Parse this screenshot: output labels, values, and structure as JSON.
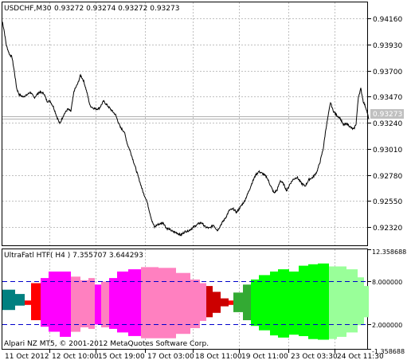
{
  "main_chart": {
    "symbol_info": "USDCHF,M30",
    "ohlc": "0.93272 0.93274 0.93272 0.93273",
    "current_price_label": "0.93273",
    "price_ticks": [
      "0.94160",
      "0.93930",
      "0.93700",
      "0.93470",
      "0.93240",
      "0.93010",
      "0.92780",
      "0.92550",
      "0.92320"
    ],
    "price_tick_values": [
      0.9416,
      0.9393,
      0.937,
      0.9347,
      0.9324,
      0.9301,
      0.9278,
      0.9255,
      0.9232
    ],
    "price_line_values": [
      0.93273,
      0.933
    ]
  },
  "indicator": {
    "title": "UltraFatl HTF( H4 ) 7.355707 3.644293",
    "scale_labels": [
      "12.358688",
      "8.000000",
      "2.000000",
      "-1.358688"
    ],
    "scale_values": [
      12.358688,
      8.0,
      2.0,
      -1.358688
    ],
    "level_values": [
      8.0,
      2.0
    ],
    "footer": "Alpari NZ MT5, © 2001-2012 MetaQuotes Software Corp."
  },
  "time_axis": {
    "labels": [
      "11 Oct 2012",
      "12 Oct 10:00",
      "15 Oct 19:00",
      "17 Oct 03:00",
      "18 Oct 11:00",
      "19 Oct 11:00",
      "23 Oct 03:30",
      "24 Oct 11:30"
    ]
  },
  "chart_data": [
    {
      "type": "line",
      "title": "USDCHF,M30",
      "x": [
        "11 Oct 2012",
        "12 Oct 10:00",
        "15 Oct 19:00",
        "17 Oct 03:00",
        "18 Oct 11:00",
        "19 Oct 11:00",
        "23 Oct 03:30",
        "24 Oct 11:30"
      ],
      "series": [
        {
          "name": "USDCHF,M30",
          "points": [
            [
              0,
              0.9413
            ],
            [
              2,
              0.9406
            ],
            [
              5,
              0.9392
            ],
            [
              9,
              0.9384
            ],
            [
              12,
              0.9382
            ],
            [
              15,
              0.9369
            ],
            [
              18,
              0.9354
            ],
            [
              21,
              0.9349
            ],
            [
              25,
              0.9347
            ],
            [
              30,
              0.9348
            ],
            [
              35,
              0.9351
            ],
            [
              40,
              0.9346
            ],
            [
              46,
              0.9351
            ],
            [
              52,
              0.935
            ],
            [
              56,
              0.9343
            ],
            [
              60,
              0.9343
            ],
            [
              64,
              0.9338
            ],
            [
              68,
              0.933
            ],
            [
              72,
              0.9323
            ],
            [
              77,
              0.9331
            ],
            [
              82,
              0.9336
            ],
            [
              86,
              0.9334
            ],
            [
              90,
              0.9352
            ],
            [
              95,
              0.9359
            ],
            [
              98,
              0.9366
            ],
            [
              102,
              0.9361
            ],
            [
              106,
              0.9351
            ],
            [
              110,
              0.9339
            ],
            [
              114,
              0.9337
            ],
            [
              118,
              0.9336
            ],
            [
              122,
              0.9337
            ],
            [
              127,
              0.9343
            ],
            [
              132,
              0.9339
            ],
            [
              137,
              0.9335
            ],
            [
              142,
              0.9331
            ],
            [
              148,
              0.932
            ],
            [
              153,
              0.9316
            ],
            [
              157,
              0.9305
            ],
            [
              161,
              0.9298
            ],
            [
              165,
              0.9289
            ],
            [
              169,
              0.928
            ],
            [
              173,
              0.9271
            ],
            [
              177,
              0.9262
            ],
            [
              181,
              0.9256
            ],
            [
              185,
              0.9245
            ],
            [
              188,
              0.9237
            ],
            [
              191,
              0.9232
            ],
            [
              194,
              0.9234
            ],
            [
              198,
              0.9235
            ],
            [
              202,
              0.9236
            ],
            [
              206,
              0.9231
            ],
            [
              210,
              0.923
            ],
            [
              214,
              0.9228
            ],
            [
              219,
              0.9227
            ],
            [
              224,
              0.9225
            ],
            [
              229,
              0.9228
            ],
            [
              234,
              0.9229
            ],
            [
              240,
              0.9232
            ],
            [
              246,
              0.9235
            ],
            [
              250,
              0.9236
            ],
            [
              255,
              0.9232
            ],
            [
              260,
              0.9231
            ],
            [
              265,
              0.9234
            ],
            [
              270,
              0.9229
            ],
            [
              275,
              0.9235
            ],
            [
              280,
              0.924
            ],
            [
              285,
              0.9247
            ],
            [
              290,
              0.9248
            ],
            [
              294,
              0.9245
            ],
            [
              299,
              0.925
            ],
            [
              304,
              0.9255
            ],
            [
              309,
              0.9263
            ],
            [
              314,
              0.9272
            ],
            [
              318,
              0.9278
            ],
            [
              322,
              0.9281
            ],
            [
              327,
              0.9279
            ],
            [
              332,
              0.9276
            ],
            [
              337,
              0.9268
            ],
            [
              341,
              0.9262
            ],
            [
              345,
              0.9265
            ],
            [
              349,
              0.9273
            ],
            [
              353,
              0.927
            ],
            [
              357,
              0.9264
            ],
            [
              361,
              0.927
            ],
            [
              365,
              0.9274
            ],
            [
              370,
              0.9276
            ],
            [
              375,
              0.9271
            ],
            [
              380,
              0.9268
            ],
            [
              385,
              0.9274
            ],
            [
              390,
              0.9276
            ],
            [
              395,
              0.9281
            ],
            [
              399,
              0.929
            ],
            [
              403,
              0.9302
            ],
            [
              406,
              0.9318
            ],
            [
              409,
              0.933
            ],
            [
              412,
              0.9342
            ],
            [
              415,
              0.9335
            ],
            [
              419,
              0.9331
            ],
            [
              424,
              0.9328
            ],
            [
              428,
              0.9322
            ],
            [
              433,
              0.9323
            ],
            [
              437,
              0.932
            ],
            [
              441,
              0.9318
            ],
            [
              444,
              0.9323
            ],
            [
              447,
              0.9347
            ],
            [
              450,
              0.9354
            ],
            [
              453,
              0.9343
            ],
            [
              457,
              0.9336
            ],
            [
              460,
              0.9327
            ]
          ]
        }
      ],
      "ylim": [
        0.9216,
        0.943
      ],
      "grid": true
    },
    {
      "type": "bar",
      "title": "UltraFatl HTF( H4 )",
      "ylim": [
        -1.358688,
        12.358688
      ],
      "levels": [
        8.0,
        2.0
      ],
      "bars": [
        {
          "x0": 0,
          "x1": 16,
          "low": 4.0,
          "high": 6.8,
          "color": "#008080"
        },
        {
          "x0": 16,
          "x1": 28,
          "low": 4.6,
          "high": 6.2,
          "color": "#008080"
        },
        {
          "x0": 28,
          "x1": 36,
          "low": 4.7,
          "high": 5.3,
          "color": "#FF0000"
        },
        {
          "x0": 36,
          "x1": 48,
          "low": 2.6,
          "high": 7.7,
          "color": "#FF0000"
        },
        {
          "x0": 48,
          "x1": 58,
          "low": 1.7,
          "high": 8.4,
          "color": "#FF00FF"
        },
        {
          "x0": 58,
          "x1": 72,
          "low": 1.0,
          "high": 9.3,
          "color": "#FF00FF"
        },
        {
          "x0": 72,
          "x1": 86,
          "low": 0.3,
          "high": 9.3,
          "color": "#FF00FF"
        },
        {
          "x0": 86,
          "x1": 98,
          "low": 1.0,
          "high": 8.6,
          "color": "#FF80C0"
        },
        {
          "x0": 98,
          "x1": 108,
          "low": 1.6,
          "high": 8.1,
          "color": "#FF80C0"
        },
        {
          "x0": 108,
          "x1": 116,
          "low": 1.4,
          "high": 8.4,
          "color": "#FF80C0"
        },
        {
          "x0": 116,
          "x1": 124,
          "low": 2.0,
          "high": 7.5,
          "color": "#FF00FF"
        },
        {
          "x0": 124,
          "x1": 134,
          "low": 1.6,
          "high": 7.9,
          "color": "#FF80C0"
        },
        {
          "x0": 134,
          "x1": 144,
          "low": 1.4,
          "high": 8.4,
          "color": "#FF00FF"
        },
        {
          "x0": 144,
          "x1": 158,
          "low": 0.9,
          "high": 9.3,
          "color": "#FF00FF"
        },
        {
          "x0": 158,
          "x1": 174,
          "low": 0.4,
          "high": 9.6,
          "color": "#FF00FF"
        },
        {
          "x0": 174,
          "x1": 196,
          "low": 0.1,
          "high": 9.9,
          "color": "#FF80C0"
        },
        {
          "x0": 196,
          "x1": 218,
          "low": 0.1,
          "high": 9.8,
          "color": "#FF80C0"
        },
        {
          "x0": 218,
          "x1": 236,
          "low": 0.7,
          "high": 9.1,
          "color": "#FF80C0"
        },
        {
          "x0": 236,
          "x1": 248,
          "low": 1.5,
          "high": 8.2,
          "color": "#FF80C0"
        },
        {
          "x0": 248,
          "x1": 256,
          "low": 2.5,
          "high": 7.7,
          "color": "#FF80C0"
        },
        {
          "x0": 256,
          "x1": 264,
          "low": 3.0,
          "high": 7.3,
          "color": "#CC0000"
        },
        {
          "x0": 264,
          "x1": 274,
          "low": 3.6,
          "high": 6.5,
          "color": "#CC0000"
        },
        {
          "x0": 274,
          "x1": 284,
          "low": 4.5,
          "high": 5.6,
          "color": "#CC0000"
        },
        {
          "x0": 284,
          "x1": 290,
          "low": 4.7,
          "high": 5.3,
          "color": "#FF0000"
        },
        {
          "x0": 290,
          "x1": 302,
          "low": 3.7,
          "high": 6.4,
          "color": "#33AA33"
        },
        {
          "x0": 302,
          "x1": 312,
          "low": 2.6,
          "high": 7.5,
          "color": "#33AA33"
        },
        {
          "x0": 312,
          "x1": 322,
          "low": 1.8,
          "high": 8.2,
          "color": "#00FF00"
        },
        {
          "x0": 322,
          "x1": 336,
          "low": 1.2,
          "high": 8.8,
          "color": "#00FF00"
        },
        {
          "x0": 336,
          "x1": 346,
          "low": 0.5,
          "high": 9.3,
          "color": "#00FF00"
        },
        {
          "x0": 346,
          "x1": 360,
          "low": 0.2,
          "high": 9.6,
          "color": "#00FF00"
        },
        {
          "x0": 360,
          "x1": 372,
          "low": 0.6,
          "high": 9.3,
          "color": "#00FF00"
        },
        {
          "x0": 372,
          "x1": 384,
          "low": 0.4,
          "high": 10.1,
          "color": "#00FF00"
        },
        {
          "x0": 384,
          "x1": 396,
          "low": 0.0,
          "high": 10.3,
          "color": "#00FF00"
        },
        {
          "x0": 396,
          "x1": 410,
          "low": -0.1,
          "high": 10.4,
          "color": "#00FF00"
        },
        {
          "x0": 410,
          "x1": 420,
          "low": 0.0,
          "high": 10.0,
          "color": "#99FF99"
        },
        {
          "x0": 420,
          "x1": 432,
          "low": 0.3,
          "high": 10.0,
          "color": "#99FF99"
        },
        {
          "x0": 432,
          "x1": 446,
          "low": 0.9,
          "high": 9.6,
          "color": "#99FF99"
        },
        {
          "x0": 446,
          "x1": 454,
          "low": 1.9,
          "high": 8.5,
          "color": "#99FF99"
        },
        {
          "x0": 454,
          "x1": 460,
          "low": 3.0,
          "high": 7.3,
          "color": "#99FF99"
        }
      ]
    }
  ]
}
